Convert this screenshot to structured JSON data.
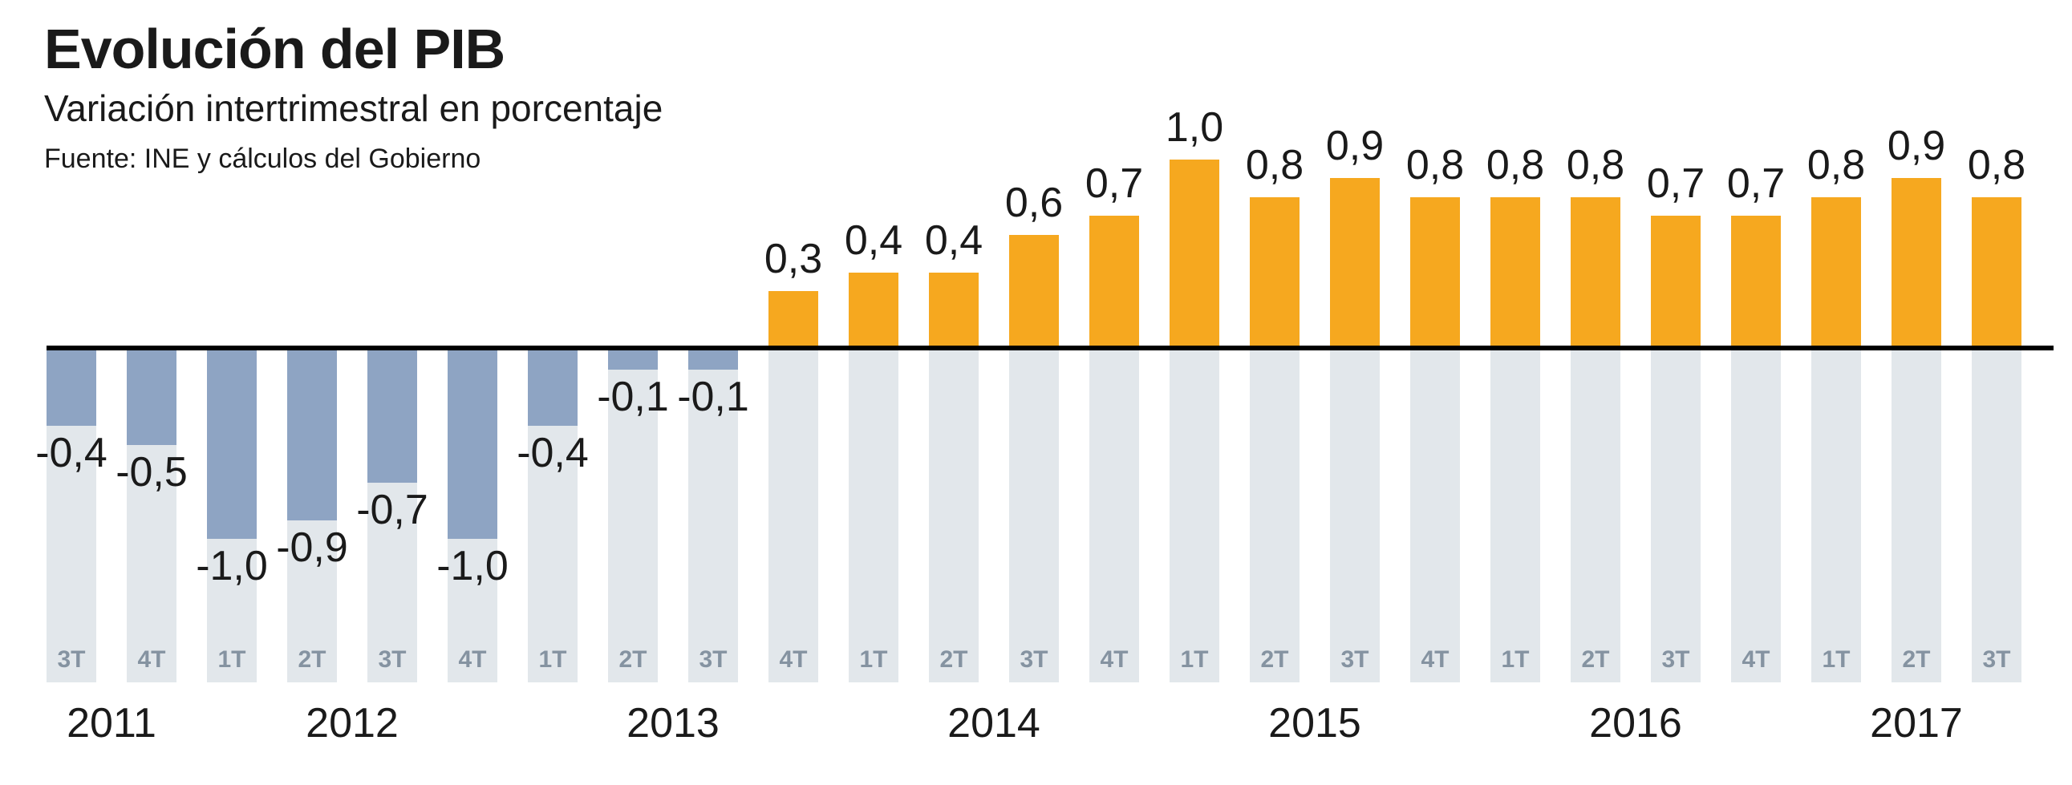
{
  "header": {
    "title": "Evolución del PIB",
    "subtitle": "Variación intertrimestral en porcentaje",
    "source": "Fuente: INE y cálculos del Gobierno"
  },
  "colors": {
    "positive_bar": "#F6A81F",
    "negative_bar": "#8EA4C3",
    "column_track": "#E2E7EB",
    "zero_line": "#000000",
    "quarter_text": "#8593A1",
    "year_text": "#1A1A1A",
    "value_text": "#1A1A1A",
    "background": "#FFFFFF"
  },
  "chart_data": {
    "type": "bar",
    "title": "Evolución del PIB",
    "subtitle": "Variación intertrimestral en porcentaje",
    "source_note": "Fuente: INE y cálculos del Gobierno",
    "unit": "percent",
    "value_format": "decimal-comma",
    "ylim": [
      -1.1,
      1.1
    ],
    "zero_line": true,
    "grid": false,
    "legend": false,
    "series": [
      {
        "name": "Variación intertrimestral del PIB",
        "points": [
          {
            "quarter": "3T",
            "year": 2011,
            "value": -0.4,
            "label": "-0,4"
          },
          {
            "quarter": "4T",
            "year": 2011,
            "value": -0.5,
            "label": "-0,5"
          },
          {
            "quarter": "1T",
            "year": 2012,
            "value": -1.0,
            "label": "-1,0"
          },
          {
            "quarter": "2T",
            "year": 2012,
            "value": -0.9,
            "label": "-0,9"
          },
          {
            "quarter": "3T",
            "year": 2012,
            "value": -0.7,
            "label": "-0,7"
          },
          {
            "quarter": "4T",
            "year": 2012,
            "value": -1.0,
            "label": "-1,0"
          },
          {
            "quarter": "1T",
            "year": 2013,
            "value": -0.4,
            "label": "-0,4"
          },
          {
            "quarter": "2T",
            "year": 2013,
            "value": -0.1,
            "label": "-0,1"
          },
          {
            "quarter": "3T",
            "year": 2013,
            "value": -0.1,
            "label": "-0,1"
          },
          {
            "quarter": "4T",
            "year": 2013,
            "value": 0.3,
            "label": "0,3"
          },
          {
            "quarter": "1T",
            "year": 2014,
            "value": 0.4,
            "label": "0,4"
          },
          {
            "quarter": "2T",
            "year": 2014,
            "value": 0.4,
            "label": "0,4"
          },
          {
            "quarter": "3T",
            "year": 2014,
            "value": 0.6,
            "label": "0,6"
          },
          {
            "quarter": "4T",
            "year": 2014,
            "value": 0.7,
            "label": "0,7"
          },
          {
            "quarter": "1T",
            "year": 2015,
            "value": 1.0,
            "label": "1,0"
          },
          {
            "quarter": "2T",
            "year": 2015,
            "value": 0.8,
            "label": "0,8"
          },
          {
            "quarter": "3T",
            "year": 2015,
            "value": 0.9,
            "label": "0,9"
          },
          {
            "quarter": "4T",
            "year": 2015,
            "value": 0.8,
            "label": "0,8"
          },
          {
            "quarter": "1T",
            "year": 2016,
            "value": 0.8,
            "label": "0,8"
          },
          {
            "quarter": "2T",
            "year": 2016,
            "value": 0.8,
            "label": "0,8"
          },
          {
            "quarter": "3T",
            "year": 2016,
            "value": 0.7,
            "label": "0,7"
          },
          {
            "quarter": "4T",
            "year": 2016,
            "value": 0.7,
            "label": "0,7"
          },
          {
            "quarter": "1T",
            "year": 2017,
            "value": 0.8,
            "label": "0,8"
          },
          {
            "quarter": "2T",
            "year": 2017,
            "value": 0.9,
            "label": "0,9"
          },
          {
            "quarter": "3T",
            "year": 2017,
            "value": 0.8,
            "label": "0,8"
          }
        ]
      }
    ],
    "years": [
      {
        "label": "2011",
        "quarter_count": 2
      },
      {
        "label": "2012",
        "quarter_count": 4
      },
      {
        "label": "2013",
        "quarter_count": 4
      },
      {
        "label": "2014",
        "quarter_count": 4
      },
      {
        "label": "2015",
        "quarter_count": 4
      },
      {
        "label": "2016",
        "quarter_count": 4
      },
      {
        "label": "2017",
        "quarter_count": 3
      }
    ]
  }
}
